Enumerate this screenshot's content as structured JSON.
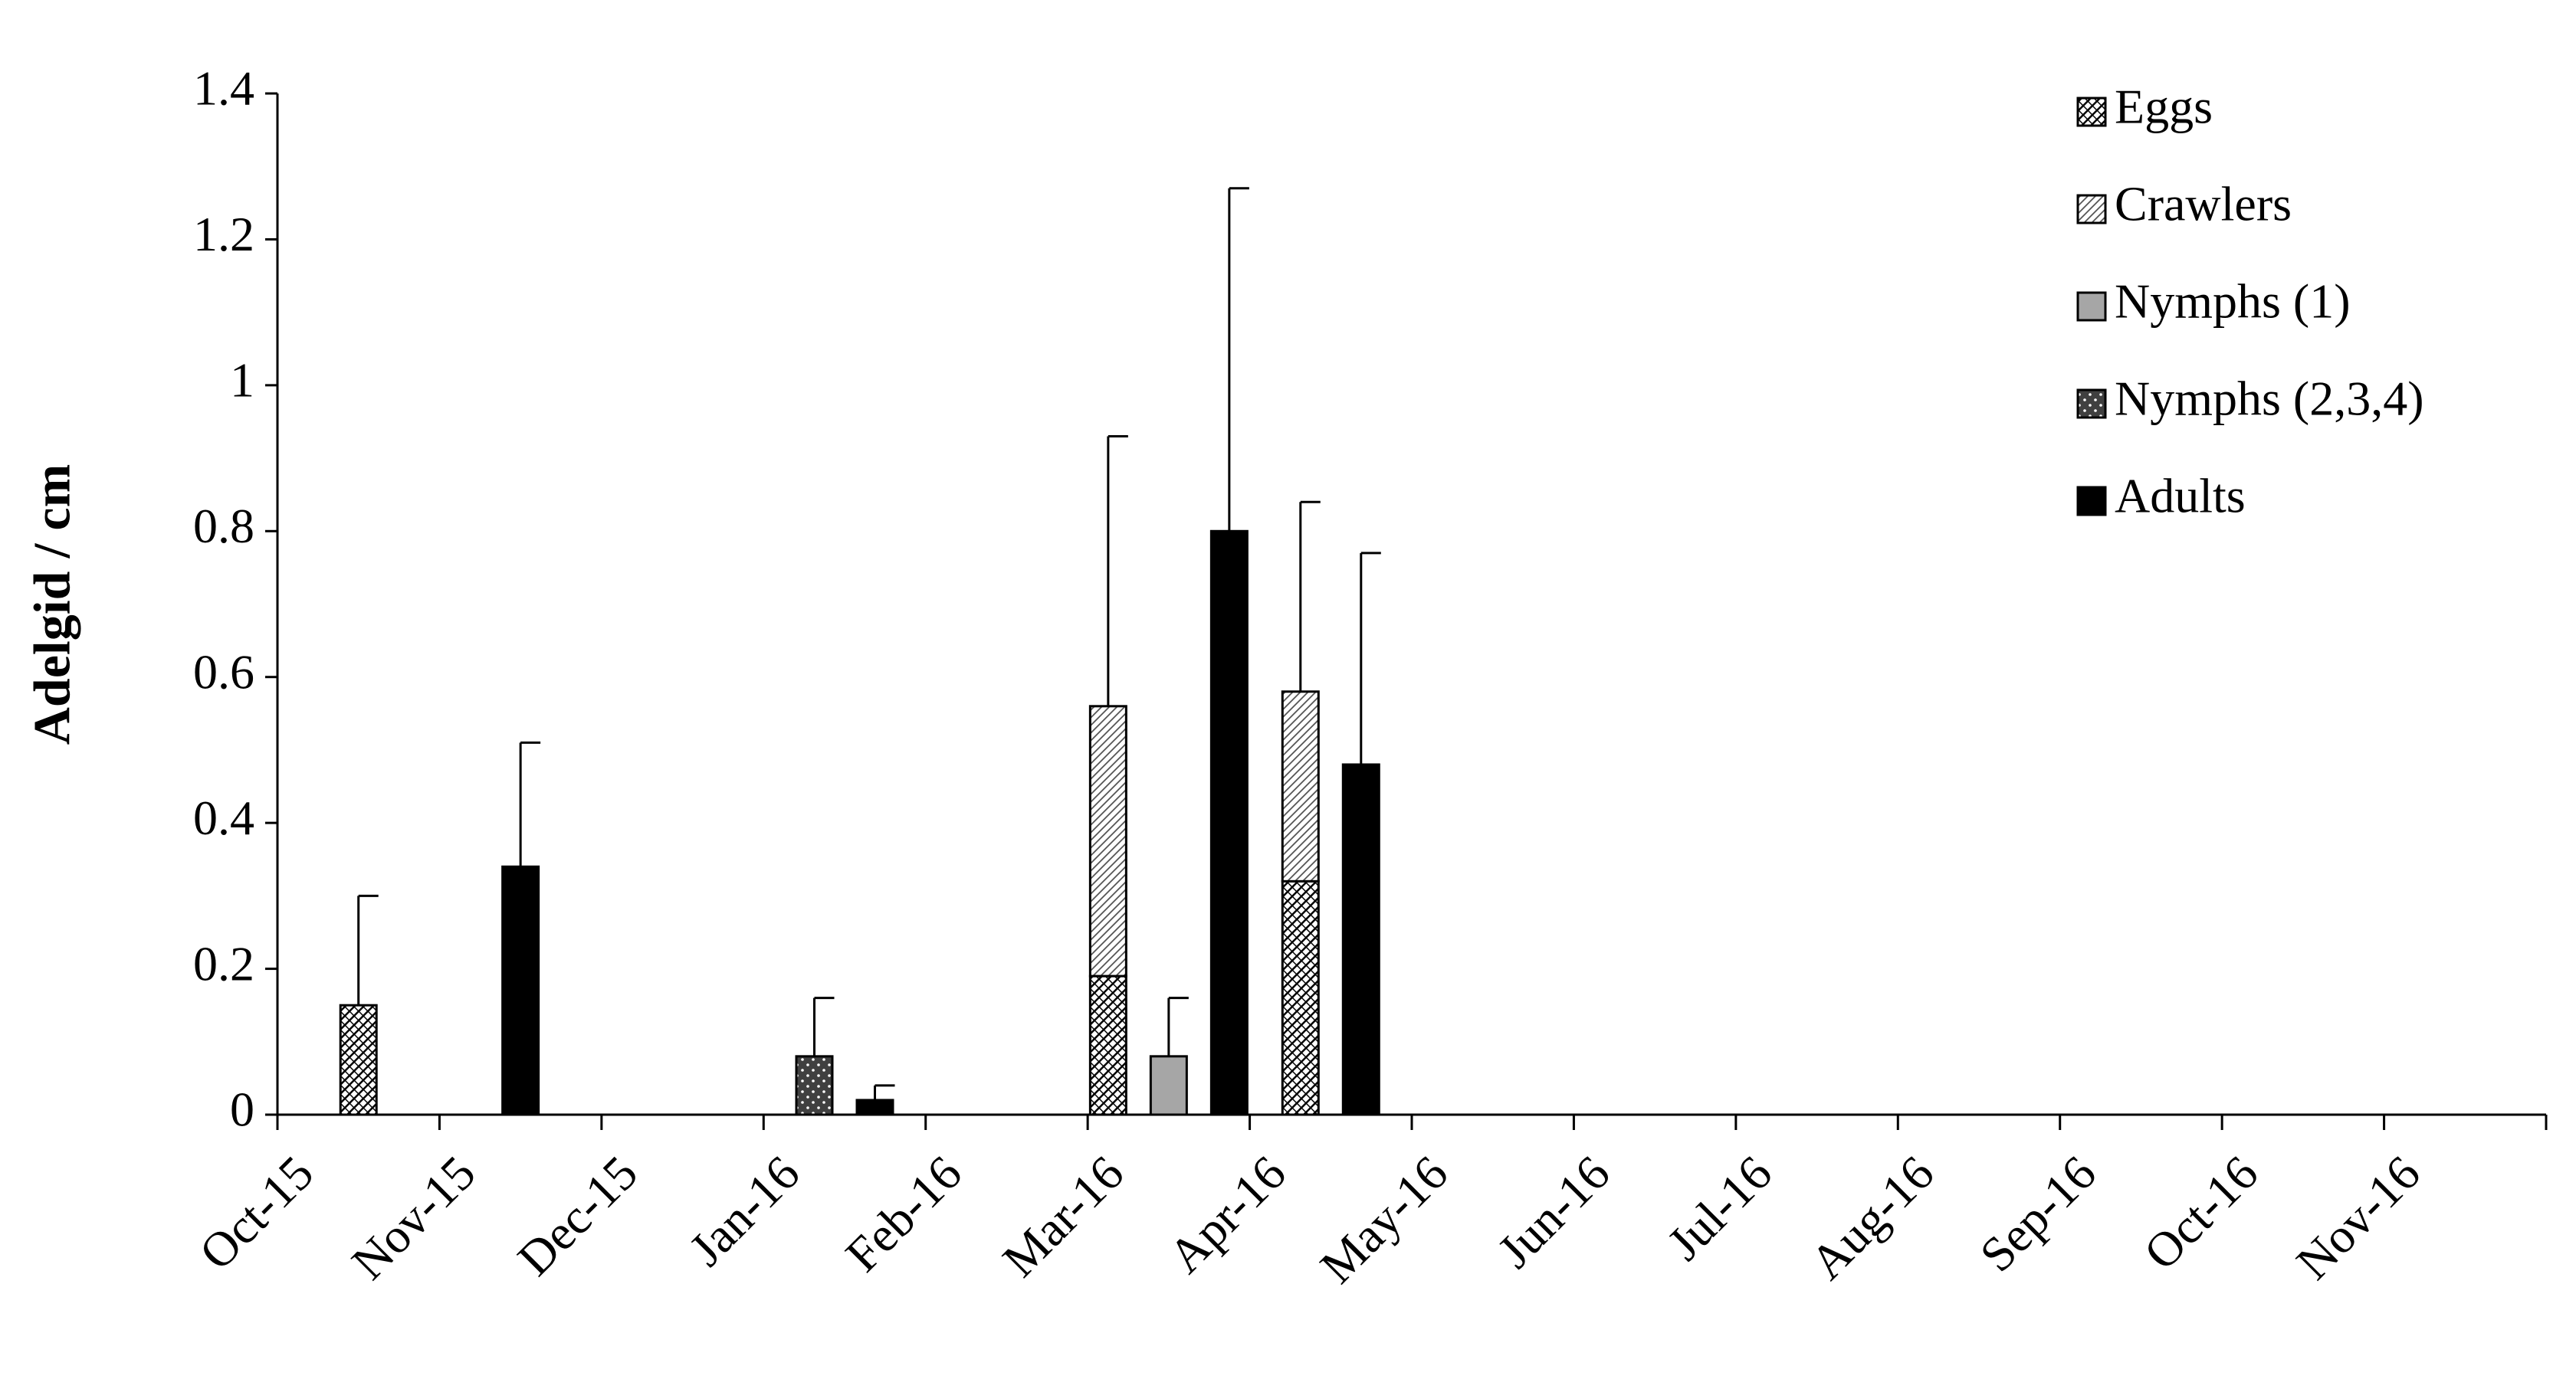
{
  "chart_data": {
    "type": "bar",
    "y_label": "Adelgid / cm",
    "categories": [
      "Oct-15",
      "Nov-15",
      "Dec-15",
      "Jan-16",
      "Feb-16",
      "Mar-16",
      "Apr-16",
      "May-16",
      "Jun-16",
      "Jul-16",
      "Aug-16",
      "Sep-16",
      "Oct-16",
      "Nov-16"
    ],
    "series": [
      {
        "name": "Eggs",
        "color": "#000000",
        "values": [
          0.15,
          null,
          null,
          null,
          null,
          0.19,
          0.32,
          null,
          null,
          null,
          null,
          null,
          null,
          null
        ],
        "errors": [
          0.15,
          null,
          null,
          null,
          null,
          null,
          null,
          null,
          null,
          null,
          null,
          null,
          null,
          null
        ]
      },
      {
        "name": "Crawlers",
        "color": "#888888",
        "values": [
          null,
          null,
          null,
          null,
          null,
          0.37,
          0.26,
          null,
          null,
          null,
          null,
          null,
          null,
          null
        ],
        "errors": [
          null,
          null,
          null,
          null,
          null,
          0.37,
          0.26,
          null,
          null,
          null,
          null,
          null,
          null,
          null
        ]
      },
      {
        "name": "Nymphs (1)",
        "color": "#a6a6a6",
        "values": [
          null,
          null,
          null,
          null,
          null,
          0.08,
          null,
          null,
          null,
          null,
          null,
          null,
          null,
          null
        ],
        "errors": [
          null,
          null,
          null,
          null,
          null,
          0.08,
          null,
          null,
          null,
          null,
          null,
          null,
          null,
          null
        ]
      },
      {
        "name": "Nymphs (2,3,4)",
        "color": "#404040",
        "values": [
          null,
          null,
          null,
          0.08,
          null,
          null,
          null,
          null,
          null,
          null,
          null,
          null,
          null,
          null
        ],
        "errors": [
          null,
          null,
          null,
          0.08,
          null,
          null,
          null,
          null,
          null,
          null,
          null,
          null,
          null,
          null
        ]
      },
      {
        "name": "Adults",
        "color": "#000000",
        "values": [
          null,
          0.34,
          null,
          0.02,
          null,
          0.8,
          0.48,
          null,
          null,
          null,
          null,
          null,
          null,
          null
        ],
        "errors": [
          null,
          0.17,
          null,
          0.02,
          null,
          0.47,
          0.29,
          null,
          null,
          null,
          null,
          null,
          null,
          null
        ]
      }
    ],
    "ylim": [
      0,
      1.4
    ],
    "yticks": [
      0,
      0.2,
      0.4,
      0.6,
      0.8,
      1,
      1.2,
      1.4
    ],
    "legend": "top-right"
  }
}
